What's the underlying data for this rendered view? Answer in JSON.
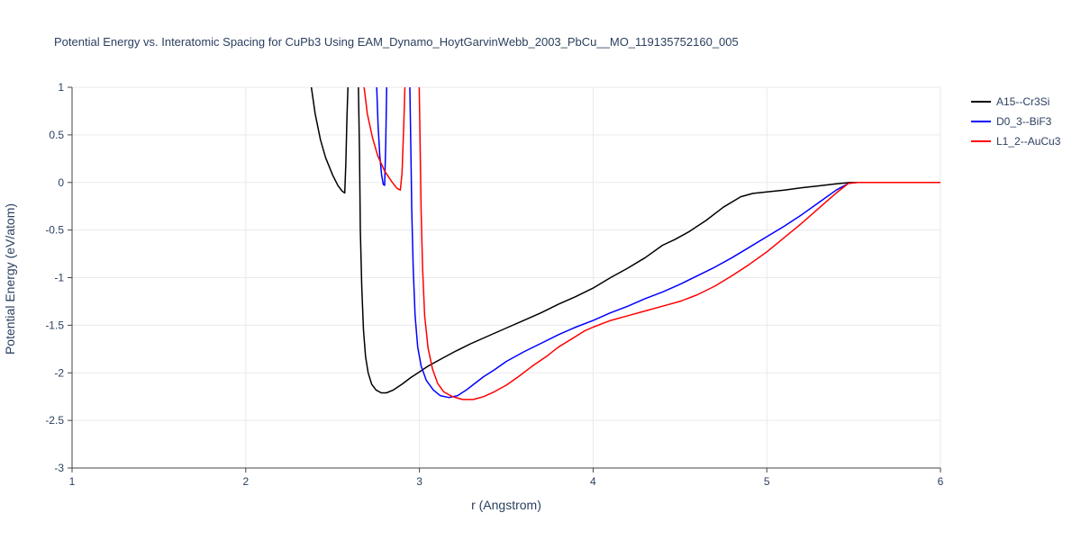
{
  "page": {
    "background": "#ffffff"
  },
  "chart_data": {
    "type": "line",
    "title": "Potential Energy vs. Interatomic Spacing for CuPb3 Using EAM_Dynamo_HoytGarvinWebb_2003_PbCu__MO_119135752160_005",
    "xlabel": "r (Angstrom)",
    "ylabel": "Potential Energy (eV/atom)",
    "xlim": [
      1,
      6
    ],
    "ylim": [
      -3,
      1
    ],
    "grid": true,
    "legend_position": "top-right-outside",
    "colors": {
      "grid": "#e9eaee",
      "axis": "#444444",
      "text": "#2a3f5f"
    },
    "xticks": [
      {
        "v": 1,
        "label": "1"
      },
      {
        "v": 2,
        "label": "2"
      },
      {
        "v": 3,
        "label": "3"
      },
      {
        "v": 4,
        "label": "4"
      },
      {
        "v": 5,
        "label": "5"
      },
      {
        "v": 6,
        "label": "6"
      }
    ],
    "yticks": [
      {
        "v": 1,
        "label": "1"
      },
      {
        "v": 0.5,
        "label": "0.5"
      },
      {
        "v": 0,
        "label": "0"
      },
      {
        "v": -0.5,
        "label": "-0.5"
      },
      {
        "v": -1,
        "label": "-1"
      },
      {
        "v": -1.5,
        "label": "-1.5"
      },
      {
        "v": -2,
        "label": "-2"
      },
      {
        "v": -2.5,
        "label": "-2.5"
      },
      {
        "v": -3,
        "label": "-3"
      }
    ],
    "series": [
      {
        "id": "a15-cr3si",
        "name": "A15--Cr3Si",
        "color": "#000000",
        "points": [
          [
            2.37,
            1.1
          ],
          [
            2.4,
            0.72
          ],
          [
            2.43,
            0.45
          ],
          [
            2.46,
            0.26
          ],
          [
            2.5,
            0.08
          ],
          [
            2.53,
            -0.03
          ],
          [
            2.555,
            -0.09
          ],
          [
            2.57,
            -0.11
          ],
          [
            2.576,
            0.2
          ],
          [
            2.583,
            0.7
          ],
          [
            2.59,
            1.1
          ],
          [
            2.648,
            1.1
          ],
          [
            2.655,
            0.3
          ],
          [
            2.66,
            -0.5
          ],
          [
            2.668,
            -1.1
          ],
          [
            2.678,
            -1.55
          ],
          [
            2.69,
            -1.83
          ],
          [
            2.705,
            -2.0
          ],
          [
            2.725,
            -2.12
          ],
          [
            2.75,
            -2.18
          ],
          [
            2.78,
            -2.21
          ],
          [
            2.81,
            -2.21
          ],
          [
            2.85,
            -2.18
          ],
          [
            2.9,
            -2.12
          ],
          [
            2.95,
            -2.05
          ],
          [
            3.0,
            -1.99
          ],
          [
            3.05,
            -1.93
          ],
          [
            3.12,
            -1.86
          ],
          [
            3.2,
            -1.78
          ],
          [
            3.3,
            -1.69
          ],
          [
            3.4,
            -1.61
          ],
          [
            3.5,
            -1.53
          ],
          [
            3.6,
            -1.45
          ],
          [
            3.7,
            -1.37
          ],
          [
            3.8,
            -1.28
          ],
          [
            3.9,
            -1.2
          ],
          [
            4.0,
            -1.11
          ],
          [
            4.1,
            -1.0
          ],
          [
            4.2,
            -0.9
          ],
          [
            4.3,
            -0.79
          ],
          [
            4.4,
            -0.66
          ],
          [
            4.47,
            -0.6
          ],
          [
            4.55,
            -0.52
          ],
          [
            4.65,
            -0.4
          ],
          [
            4.75,
            -0.26
          ],
          [
            4.85,
            -0.15
          ],
          [
            4.92,
            -0.115
          ],
          [
            5.0,
            -0.1
          ],
          [
            5.1,
            -0.08
          ],
          [
            5.2,
            -0.055
          ],
          [
            5.3,
            -0.035
          ],
          [
            5.4,
            -0.015
          ],
          [
            5.48,
            0.0
          ],
          [
            6.0,
            0.0
          ]
        ]
      },
      {
        "id": "d03-bif3",
        "name": "D0_3--BiF3",
        "color": "#0000ff",
        "points": [
          [
            2.752,
            1.1
          ],
          [
            2.762,
            0.6
          ],
          [
            2.772,
            0.28
          ],
          [
            2.782,
            0.08
          ],
          [
            2.792,
            -0.02
          ],
          [
            2.8,
            -0.03
          ],
          [
            2.806,
            0.4
          ],
          [
            2.812,
            1.1
          ],
          [
            2.944,
            1.1
          ],
          [
            2.95,
            0.4
          ],
          [
            2.956,
            -0.3
          ],
          [
            2.964,
            -0.9
          ],
          [
            2.975,
            -1.4
          ],
          [
            2.99,
            -1.73
          ],
          [
            3.01,
            -1.93
          ],
          [
            3.04,
            -2.08
          ],
          [
            3.08,
            -2.18
          ],
          [
            3.12,
            -2.24
          ],
          [
            3.17,
            -2.26
          ],
          [
            3.22,
            -2.24
          ],
          [
            3.27,
            -2.18
          ],
          [
            3.32,
            -2.11
          ],
          [
            3.37,
            -2.04
          ],
          [
            3.43,
            -1.97
          ],
          [
            3.5,
            -1.88
          ],
          [
            3.6,
            -1.78
          ],
          [
            3.7,
            -1.69
          ],
          [
            3.8,
            -1.6
          ],
          [
            3.9,
            -1.52
          ],
          [
            4.0,
            -1.45
          ],
          [
            4.1,
            -1.37
          ],
          [
            4.2,
            -1.3
          ],
          [
            4.3,
            -1.22
          ],
          [
            4.4,
            -1.15
          ],
          [
            4.5,
            -1.07
          ],
          [
            4.6,
            -0.98
          ],
          [
            4.7,
            -0.89
          ],
          [
            4.8,
            -0.79
          ],
          [
            4.9,
            -0.68
          ],
          [
            5.0,
            -0.57
          ],
          [
            5.1,
            -0.46
          ],
          [
            5.2,
            -0.34
          ],
          [
            5.3,
            -0.21
          ],
          [
            5.4,
            -0.08
          ],
          [
            5.47,
            -0.01
          ],
          [
            5.52,
            0.0
          ],
          [
            6.0,
            0.0
          ]
        ]
      },
      {
        "id": "l12-aucu3",
        "name": "L1_2--AuCu3",
        "color": "#ff0000",
        "points": [
          [
            2.675,
            1.1
          ],
          [
            2.7,
            0.72
          ],
          [
            2.73,
            0.47
          ],
          [
            2.76,
            0.28
          ],
          [
            2.8,
            0.12
          ],
          [
            2.84,
            0.01
          ],
          [
            2.87,
            -0.06
          ],
          [
            2.89,
            -0.08
          ],
          [
            2.9,
            0.1
          ],
          [
            2.91,
            0.6
          ],
          [
            2.918,
            1.1
          ],
          [
            2.998,
            1.1
          ],
          [
            3.004,
            0.4
          ],
          [
            3.01,
            -0.3
          ],
          [
            3.018,
            -0.9
          ],
          [
            3.03,
            -1.4
          ],
          [
            3.05,
            -1.74
          ],
          [
            3.075,
            -1.96
          ],
          [
            3.105,
            -2.11
          ],
          [
            3.14,
            -2.2
          ],
          [
            3.19,
            -2.25
          ],
          [
            3.25,
            -2.28
          ],
          [
            3.31,
            -2.28
          ],
          [
            3.37,
            -2.25
          ],
          [
            3.43,
            -2.2
          ],
          [
            3.5,
            -2.13
          ],
          [
            3.57,
            -2.04
          ],
          [
            3.65,
            -1.93
          ],
          [
            3.73,
            -1.83
          ],
          [
            3.8,
            -1.73
          ],
          [
            3.88,
            -1.64
          ],
          [
            3.95,
            -1.56
          ],
          [
            4.0,
            -1.52
          ],
          [
            4.1,
            -1.45
          ],
          [
            4.2,
            -1.4
          ],
          [
            4.3,
            -1.35
          ],
          [
            4.4,
            -1.3
          ],
          [
            4.5,
            -1.25
          ],
          [
            4.6,
            -1.18
          ],
          [
            4.7,
            -1.09
          ],
          [
            4.8,
            -0.98
          ],
          [
            4.9,
            -0.86
          ],
          [
            5.0,
            -0.73
          ],
          [
            5.1,
            -0.58
          ],
          [
            5.2,
            -0.43
          ],
          [
            5.3,
            -0.27
          ],
          [
            5.4,
            -0.11
          ],
          [
            5.47,
            -0.01
          ],
          [
            5.52,
            0.0
          ],
          [
            6.0,
            0.0
          ]
        ]
      }
    ]
  }
}
